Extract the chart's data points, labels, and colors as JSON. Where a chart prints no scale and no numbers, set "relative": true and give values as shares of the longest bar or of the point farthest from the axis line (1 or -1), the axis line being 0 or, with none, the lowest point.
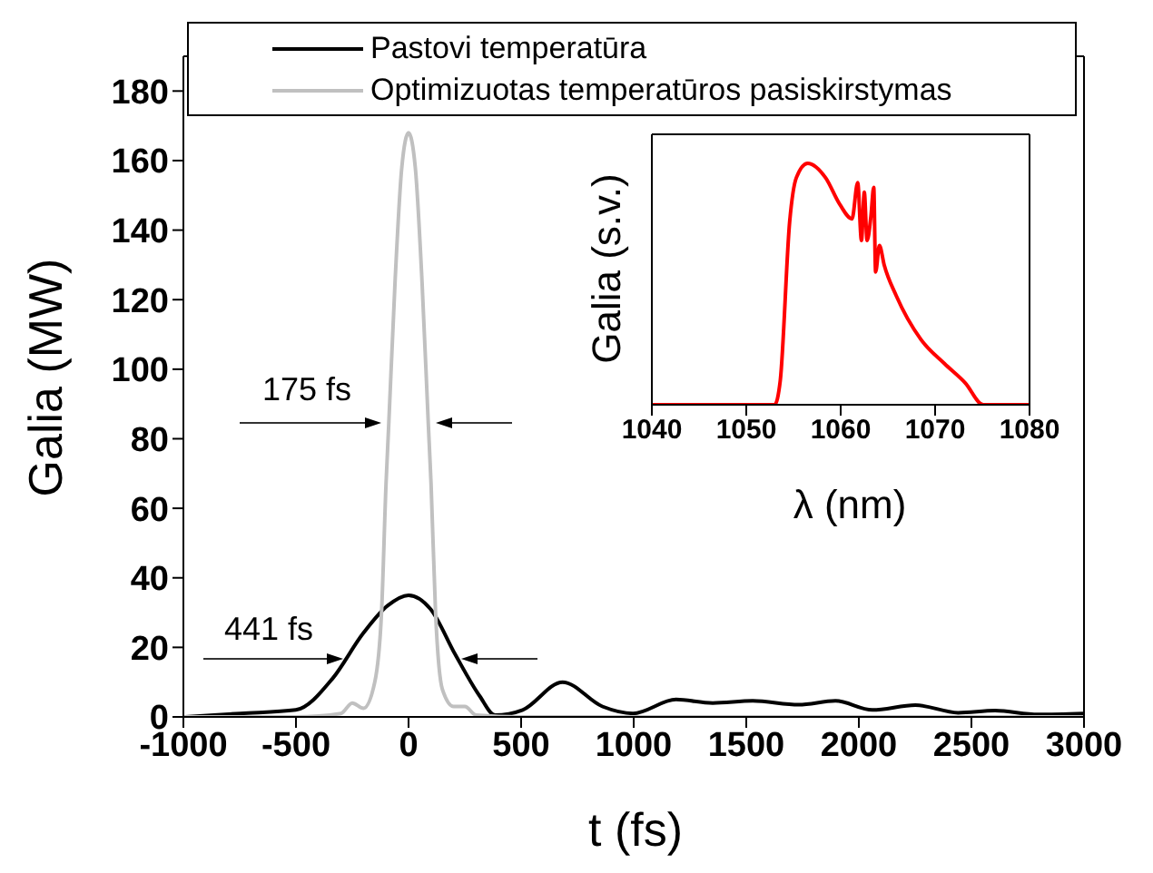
{
  "chart_data": [
    {
      "type": "line",
      "xlabel": "t (fs)",
      "ylabel": "Galia (MW)",
      "xlim": [
        -1000,
        3000
      ],
      "xticks": [
        -1000,
        -500,
        0,
        500,
        1000,
        1500,
        2000,
        2500,
        3000
      ],
      "ylim": [
        0,
        190
      ],
      "yticks": [
        0,
        20,
        40,
        60,
        80,
        100,
        120,
        140,
        160,
        180
      ],
      "legend": "top",
      "series": [
        {
          "name": "Pastovi temperatūra",
          "color": "#000000",
          "x": [
            -992,
            -747,
            -501,
            -338,
            -202,
            -93,
            0,
            98,
            207,
            316,
            384,
            507,
            684,
            861,
            997,
            1188,
            1351,
            1529,
            1733,
            1896,
            2060,
            2251,
            2441,
            2605,
            2796,
            3000
          ],
          "values": [
            0,
            1,
            2,
            11,
            24,
            32,
            35,
            31,
            18,
            6,
            0.5,
            2,
            10,
            3,
            1,
            5,
            4,
            4.6,
            3.5,
            4.6,
            2,
            3.4,
            1.2,
            1.8,
            0.7,
            1
          ]
        },
        {
          "name": "Optimizuotas temperatūros pasiskirstymas",
          "color": "#c0c0c0",
          "x": [
            -1000,
            -500,
            -300,
            -250,
            -200,
            -150,
            -120,
            -100,
            -88,
            -60,
            -30,
            0,
            30,
            60,
            88,
            100,
            120,
            150,
            200,
            250,
            300,
            500,
            3000
          ],
          "values": [
            0,
            0,
            1,
            4,
            2.5,
            10,
            30,
            67,
            84,
            125,
            158,
            168,
            158,
            125,
            84,
            67,
            30,
            8,
            3,
            3,
            0.5,
            0,
            0
          ]
        }
      ],
      "annotations": [
        "175 fs",
        "441 fs"
      ]
    },
    {
      "type": "line",
      "relative": true,
      "xlabel": "λ (nm)",
      "ylabel": "Galia (s.v.)",
      "xlim": [
        1040,
        1080
      ],
      "xticks": [
        1040,
        1050,
        1060,
        1070,
        1080
      ],
      "tick_labels": "x",
      "series": [
        {
          "color": "#ff0000",
          "x": [
            1040,
            1053.0,
            1053.6,
            1054.6,
            1055.3,
            1056.5,
            1058.4,
            1059.9,
            1061.2,
            1061.8,
            1062.2,
            1062.5,
            1062.8,
            1063.2,
            1063.5,
            1063.7,
            1064.1,
            1064.6,
            1065.9,
            1068.5,
            1071.0,
            1073.2,
            1075.1,
            1080
          ],
          "values": [
            0,
            0,
            0.1,
            0.76,
            0.94,
            1,
            0.94,
            0.83,
            0.77,
            0.92,
            0.68,
            0.88,
            0.68,
            0.78,
            0.9,
            0.55,
            0.66,
            0.58,
            0.45,
            0.27,
            0.17,
            0.09,
            0,
            0
          ]
        }
      ]
    }
  ]
}
